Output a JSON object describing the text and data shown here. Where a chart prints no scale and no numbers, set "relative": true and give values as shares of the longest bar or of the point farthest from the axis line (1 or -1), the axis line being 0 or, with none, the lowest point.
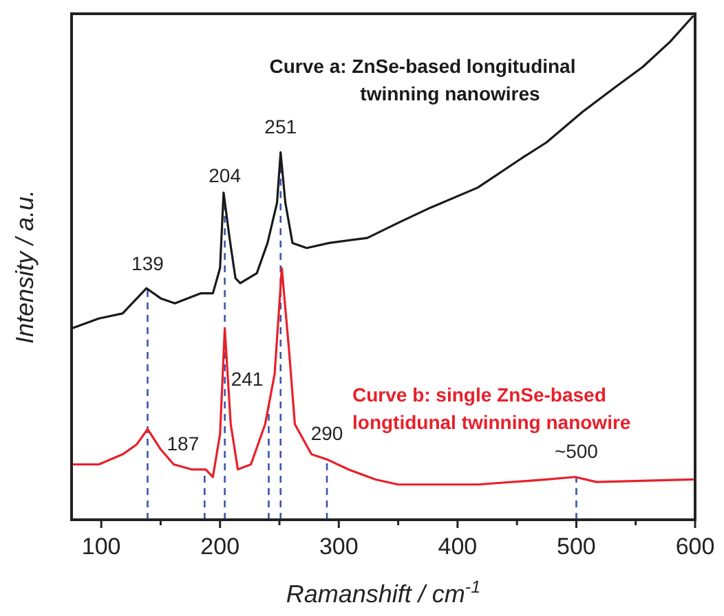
{
  "chart_data": {
    "type": "line",
    "relative": true,
    "xlabel": "Ramanshift / cm$^{-1}$",
    "ylabel": "Intensity / a.u.",
    "xlim": [
      75,
      600
    ],
    "xticks": [
      100,
      {
        "value": 150,
        "label": null
      },
      200,
      {
        "value": 250,
        "label": null
      },
      300,
      {
        "value": 350,
        "label": null
      },
      400,
      {
        "value": 450,
        "label": null
      },
      500,
      {
        "value": 550,
        "label": null
      },
      600
    ],
    "legend": false,
    "grid": false,
    "series": [
      {
        "name": "Curve a: ZnSe-based longitudinal twinning nanowires",
        "color": "#1a1a1a",
        "x": [
          75,
          98,
          118,
          138,
          150,
          162,
          184,
          194,
          200,
          203,
          208,
          213,
          217,
          231,
          240,
          248,
          251,
          255,
          261,
          273,
          292,
          324,
          350,
          377,
          417,
          455,
          475,
          505,
          533,
          556,
          579,
          598
        ],
        "values": [
          0.38,
          0.4,
          0.41,
          0.46,
          0.44,
          0.43,
          0.45,
          0.45,
          0.5,
          0.65,
          0.56,
          0.48,
          0.47,
          0.49,
          0.55,
          0.63,
          0.73,
          0.63,
          0.55,
          0.54,
          0.55,
          0.56,
          0.59,
          0.62,
          0.66,
          0.72,
          0.75,
          0.81,
          0.86,
          0.9,
          0.95,
          1
        ]
      },
      {
        "name": "Curve b: single ZnSe-based longtidunal twinning nanowire",
        "color": "#e8202a",
        "x": [
          75,
          98,
          118,
          130,
          139,
          150,
          161,
          176,
          188,
          194,
          200,
          204,
          209,
          215,
          226,
          238,
          246,
          252,
          258,
          263,
          277,
          290,
          308,
          331,
          350,
          417,
          475,
          499,
          517,
          598
        ],
        "values": [
          0.11,
          0.11,
          0.13,
          0.15,
          0.18,
          0.14,
          0.11,
          0.1,
          0.1,
          0.085,
          0.17,
          0.38,
          0.19,
          0.1,
          0.11,
          0.19,
          0.29,
          0.5,
          0.34,
          0.19,
          0.13,
          0.12,
          0.1,
          0.08,
          0.07,
          0.07,
          0.08,
          0.085,
          0.075,
          0.08
        ]
      }
    ],
    "ref_lines": [
      {
        "axis": "x",
        "value": 139,
        "label": "139",
        "color": "#3a55a8",
        "line_style": "dashed"
      },
      {
        "axis": "x",
        "value": 187,
        "label": "187",
        "color": "#3a55a8",
        "line_style": "dashed"
      },
      {
        "axis": "x",
        "value": 204,
        "label": "204",
        "color": "#3a55a8",
        "line_style": "dashed"
      },
      {
        "axis": "x",
        "value": 241,
        "label": "241",
        "color": "#3a55a8",
        "line_style": "dashed"
      },
      {
        "axis": "x",
        "value": 251,
        "label": "251",
        "color": "#3a55a8",
        "line_style": "dashed"
      },
      {
        "axis": "x",
        "value": 290,
        "label": "290",
        "color": "#3a55a8",
        "line_style": "dashed"
      },
      {
        "axis": "x",
        "value": 500,
        "label": "~500",
        "color": "#3a55a8",
        "line_style": "dashed"
      }
    ]
  }
}
